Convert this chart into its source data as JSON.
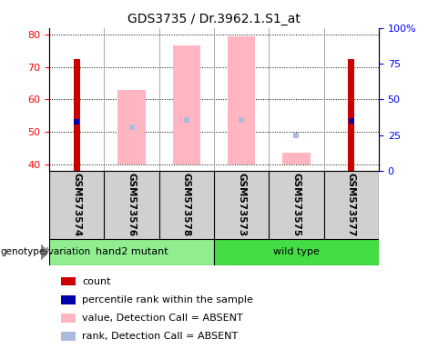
{
  "title": "GDS3735 / Dr.3962.1.S1_at",
  "samples": [
    "GSM573574",
    "GSM573576",
    "GSM573578",
    "GSM573573",
    "GSM573575",
    "GSM573577"
  ],
  "ylim_left": [
    38,
    82
  ],
  "ylim_right": [
    0,
    100
  ],
  "yticks_left": [
    40,
    50,
    60,
    70,
    80
  ],
  "ytick_labels_right": [
    "0",
    "25",
    "50",
    "75",
    "100%"
  ],
  "yticks_right": [
    0,
    25,
    50,
    75,
    100
  ],
  "count_color": "#CC0000",
  "rank_color": "#0000AA",
  "absent_value_color": "#FFB6C1",
  "absent_rank_color": "#AABBDD",
  "count_data": [
    72.5,
    null,
    null,
    null,
    null,
    72.5
  ],
  "rank_data": [
    53.0,
    null,
    null,
    null,
    null,
    53.5
  ],
  "absent_value_data": [
    null,
    63.0,
    76.5,
    79.5,
    43.5,
    null
  ],
  "absent_value_bottom": [
    null,
    40.0,
    40.0,
    40.0,
    40.0,
    null
  ],
  "absent_rank_data": [
    null,
    51.5,
    53.8,
    53.8,
    49.0,
    null
  ],
  "group_hand2_color": "#90EE90",
  "group_wild_color": "#44DD44",
  "legend_items": [
    {
      "label": "count",
      "color": "#CC0000"
    },
    {
      "label": "percentile rank within the sample",
      "color": "#0000AA"
    },
    {
      "label": "value, Detection Call = ABSENT",
      "color": "#FFB6C1"
    },
    {
      "label": "rank, Detection Call = ABSENT",
      "color": "#AABBDD"
    }
  ]
}
